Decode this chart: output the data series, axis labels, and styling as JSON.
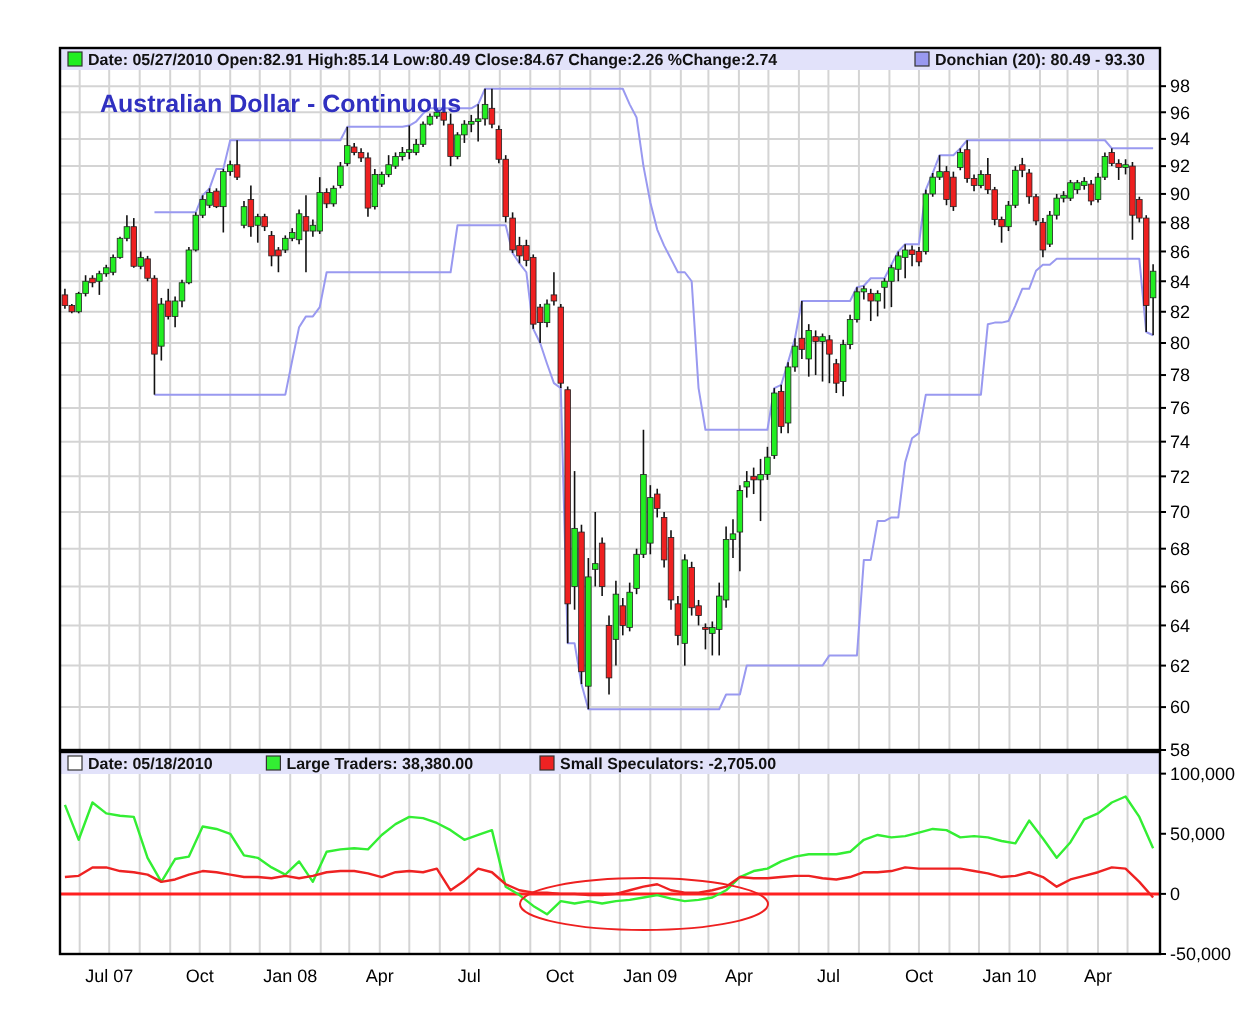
{
  "chart_data": [
    {
      "type": "candlestick",
      "title": "Australian Dollar - Continuous",
      "annotations": [
        "Date: 05/27/2010 Open:82.91 High:85.14 Low:80.49 Close:84.67 Change:2.26 %Change:2.74"
      ],
      "x": [
        "2007-05-17",
        "2007-05-24",
        "2007-05-31",
        "2007-06-07",
        "2007-06-14",
        "2007-06-21",
        "2007-06-28",
        "2007-07-05",
        "2007-07-12",
        "2007-07-19",
        "2007-07-26",
        "2007-08-02",
        "2007-08-09",
        "2007-08-16",
        "2007-08-23",
        "2007-08-30",
        "2007-09-06",
        "2007-09-13",
        "2007-09-20",
        "2007-09-27",
        "2007-10-04",
        "2007-10-11",
        "2007-10-18",
        "2007-10-25",
        "2007-11-01",
        "2007-11-08",
        "2007-11-15",
        "2007-11-22",
        "2007-11-29",
        "2007-12-06",
        "2007-12-13",
        "2007-12-20",
        "2007-12-27",
        "2008-01-03",
        "2008-01-10",
        "2008-01-17",
        "2008-01-24",
        "2008-01-31",
        "2008-02-07",
        "2008-02-14",
        "2008-02-21",
        "2008-02-28",
        "2008-03-06",
        "2008-03-13",
        "2008-03-20",
        "2008-03-27",
        "2008-04-03",
        "2008-04-10",
        "2008-04-17",
        "2008-04-24",
        "2008-05-01",
        "2008-05-08",
        "2008-05-15",
        "2008-05-22",
        "2008-05-29",
        "2008-06-05",
        "2008-06-12",
        "2008-06-19",
        "2008-06-26",
        "2008-07-03",
        "2008-07-10",
        "2008-07-17",
        "2008-07-24",
        "2008-07-31",
        "2008-08-07",
        "2008-08-14",
        "2008-08-21",
        "2008-08-28",
        "2008-09-04",
        "2008-09-11",
        "2008-09-18",
        "2008-09-25",
        "2008-10-02",
        "2008-10-09",
        "2008-10-16",
        "2008-10-23",
        "2008-10-30",
        "2008-11-06",
        "2008-11-13",
        "2008-11-20",
        "2008-11-27",
        "2008-12-04",
        "2008-12-11",
        "2008-12-18",
        "2008-12-25",
        "2009-01-01",
        "2009-01-08",
        "2009-01-15",
        "2009-01-22",
        "2009-01-29",
        "2009-02-05",
        "2009-02-12",
        "2009-02-19",
        "2009-02-26",
        "2009-03-05",
        "2009-03-12",
        "2009-03-19",
        "2009-03-26",
        "2009-04-02",
        "2009-04-09",
        "2009-04-16",
        "2009-04-23",
        "2009-04-30",
        "2009-05-07",
        "2009-05-14",
        "2009-05-21",
        "2009-05-28",
        "2009-06-04",
        "2009-06-11",
        "2009-06-18",
        "2009-06-25",
        "2009-07-02",
        "2009-07-09",
        "2009-07-16",
        "2009-07-23",
        "2009-07-30",
        "2009-08-06",
        "2009-08-13",
        "2009-08-20",
        "2009-08-27",
        "2009-09-03",
        "2009-09-10",
        "2009-09-17",
        "2009-09-24",
        "2009-10-01",
        "2009-10-08",
        "2009-10-15",
        "2009-10-22",
        "2009-10-29",
        "2009-11-05",
        "2009-11-12",
        "2009-11-19",
        "2009-11-26",
        "2009-12-03",
        "2009-12-10",
        "2009-12-17",
        "2009-12-24",
        "2009-12-31",
        "2010-01-07",
        "2010-01-14",
        "2010-01-21",
        "2010-01-28",
        "2010-02-04",
        "2010-02-11",
        "2010-02-18",
        "2010-02-25",
        "2010-03-04",
        "2010-03-11",
        "2010-03-18",
        "2010-03-25",
        "2010-04-01",
        "2010-04-08",
        "2010-04-15",
        "2010-04-22",
        "2010-04-29",
        "2010-05-06",
        "2010-05-13",
        "2010-05-20",
        "2010-05-27"
      ],
      "ohlc": [
        [
          83.1,
          83.5,
          82.2,
          82.4
        ],
        [
          82.4,
          82.5,
          81.9,
          82.0
        ],
        [
          82.0,
          83.3,
          81.9,
          83.2
        ],
        [
          83.2,
          84.4,
          83.0,
          84.0
        ],
        [
          84.2,
          84.4,
          83.6,
          83.9
        ],
        [
          84.0,
          84.7,
          83.1,
          84.5
        ],
        [
          84.5,
          85.1,
          84.3,
          84.9
        ],
        [
          84.6,
          85.8,
          84.4,
          85.6
        ],
        [
          85.6,
          87.0,
          85.5,
          86.9
        ],
        [
          86.9,
          88.5,
          86.7,
          87.7
        ],
        [
          87.7,
          88.3,
          84.9,
          85.0
        ],
        [
          85.0,
          86.0,
          84.8,
          85.6
        ],
        [
          85.5,
          85.7,
          84.0,
          84.2
        ],
        [
          84.2,
          84.4,
          76.8,
          79.3
        ],
        [
          79.8,
          82.9,
          78.9,
          82.5
        ],
        [
          82.7,
          83.5,
          81.5,
          81.7
        ],
        [
          81.7,
          83.0,
          81.0,
          82.7
        ],
        [
          82.7,
          84.1,
          82.3,
          83.9
        ],
        [
          83.9,
          86.3,
          83.8,
          86.1
        ],
        [
          86.1,
          88.7,
          86.0,
          88.5
        ],
        [
          88.5,
          89.9,
          88.3,
          89.6
        ],
        [
          89.2,
          90.4,
          89.0,
          90.1
        ],
        [
          90.2,
          90.4,
          89.0,
          89.1
        ],
        [
          89.1,
          91.8,
          87.3,
          91.6
        ],
        [
          91.6,
          92.4,
          91.3,
          92.1
        ],
        [
          92.1,
          93.9,
          91.0,
          91.2
        ],
        [
          87.8,
          89.5,
          87.6,
          89.1
        ],
        [
          89.6,
          90.6,
          87.0,
          87.7
        ],
        [
          87.8,
          88.6,
          86.6,
          88.4
        ],
        [
          88.4,
          88.6,
          87.4,
          87.7
        ],
        [
          87.1,
          87.4,
          85.0,
          85.7
        ],
        [
          86.1,
          86.3,
          84.6,
          85.7
        ],
        [
          86.1,
          87.1,
          85.9,
          86.9
        ],
        [
          86.9,
          87.6,
          86.7,
          87.3
        ],
        [
          86.8,
          88.9,
          86.5,
          88.6
        ],
        [
          88.4,
          89.9,
          84.6,
          87.4
        ],
        [
          87.4,
          88.2,
          87.0,
          87.8
        ],
        [
          87.4,
          91.2,
          87.2,
          90.1
        ],
        [
          90.1,
          90.4,
          89.0,
          89.3
        ],
        [
          89.3,
          90.6,
          89.1,
          90.4
        ],
        [
          90.6,
          92.3,
          90.4,
          92.0
        ],
        [
          92.2,
          94.9,
          92.0,
          93.5
        ],
        [
          93.4,
          93.7,
          92.8,
          93.0
        ],
        [
          93.0,
          93.3,
          92.3,
          92.6
        ],
        [
          92.6,
          93.0,
          88.4,
          89.0
        ],
        [
          89.1,
          91.8,
          88.9,
          91.4
        ],
        [
          90.7,
          91.6,
          90.5,
          91.4
        ],
        [
          91.4,
          92.8,
          91.2,
          92.1
        ],
        [
          92.0,
          93.0,
          91.8,
          92.7
        ],
        [
          92.7,
          93.4,
          92.4,
          93.0
        ],
        [
          93.0,
          95.0,
          92.5,
          93.2
        ],
        [
          93.0,
          94.0,
          92.8,
          93.6
        ],
        [
          93.6,
          95.3,
          93.4,
          95.1
        ],
        [
          95.1,
          95.9,
          95.0,
          95.7
        ],
        [
          95.7,
          96.3,
          95.5,
          96.0
        ],
        [
          96.0,
          96.2,
          95.0,
          95.4
        ],
        [
          95.1,
          95.9,
          92.0,
          92.7
        ],
        [
          92.7,
          94.5,
          92.5,
          94.3
        ],
        [
          94.3,
          95.4,
          93.7,
          95.1
        ],
        [
          95.1,
          95.8,
          94.5,
          95.3
        ],
        [
          95.3,
          96.6,
          93.8,
          95.5
        ],
        [
          95.5,
          97.8,
          95.0,
          96.6
        ],
        [
          96.3,
          97.8,
          94.8,
          95.1
        ],
        [
          94.7,
          95.0,
          92.2,
          92.5
        ],
        [
          92.5,
          92.8,
          88.0,
          88.4
        ],
        [
          88.3,
          88.7,
          85.9,
          86.1
        ],
        [
          86.4,
          87.0,
          85.2,
          85.7
        ],
        [
          86.4,
          86.8,
          85.0,
          85.4
        ],
        [
          85.6,
          85.8,
          80.9,
          81.2
        ],
        [
          82.3,
          82.5,
          80.0,
          81.3
        ],
        [
          81.3,
          82.8,
          81.0,
          82.5
        ],
        [
          83.1,
          84.6,
          82.4,
          82.7
        ],
        [
          82.3,
          82.5,
          77.2,
          77.5
        ],
        [
          77.1,
          77.3,
          63.1,
          65.1
        ],
        [
          66.0,
          72.3,
          64.8,
          69.1
        ],
        [
          68.9,
          69.3,
          61.1,
          61.7
        ],
        [
          61.0,
          67.5,
          59.9,
          66.5
        ],
        [
          66.9,
          70.0,
          66.0,
          67.2
        ],
        [
          68.3,
          68.6,
          65.5,
          66.0
        ],
        [
          64.0,
          64.5,
          60.6,
          61.4
        ],
        [
          63.3,
          66.3,
          62.0,
          65.6
        ],
        [
          65.0,
          65.4,
          63.5,
          64.0
        ],
        [
          63.9,
          66.2,
          63.7,
          65.7
        ],
        [
          65.9,
          68.0,
          65.6,
          67.7
        ],
        [
          67.7,
          74.7,
          67.5,
          72.1
        ],
        [
          68.3,
          71.5,
          67.7,
          70.8
        ],
        [
          71.0,
          71.3,
          69.7,
          70.2
        ],
        [
          69.7,
          70.0,
          67.0,
          67.4
        ],
        [
          68.6,
          69.0,
          64.8,
          65.3
        ],
        [
          65.1,
          65.5,
          63.0,
          63.5
        ],
        [
          63.1,
          67.7,
          62.0,
          67.4
        ],
        [
          67.0,
          67.3,
          64.5,
          64.9
        ],
        [
          65.0,
          65.3,
          64.0,
          64.5
        ],
        [
          63.9,
          64.1,
          62.8,
          63.8
        ],
        [
          63.6,
          64.2,
          62.5,
          63.9
        ],
        [
          63.8,
          66.2,
          62.5,
          65.5
        ],
        [
          65.3,
          69.2,
          64.9,
          68.5
        ],
        [
          68.5,
          69.6,
          67.5,
          68.8
        ],
        [
          68.9,
          71.5,
          66.8,
          71.2
        ],
        [
          71.4,
          72.3,
          70.8,
          71.7
        ],
        [
          72.0,
          72.5,
          71.0,
          71.8
        ],
        [
          71.8,
          73.0,
          69.5,
          72.1
        ],
        [
          72.1,
          73.7,
          71.8,
          73.1
        ],
        [
          73.2,
          77.2,
          73.0,
          76.9
        ],
        [
          77.0,
          77.4,
          74.5,
          74.9
        ],
        [
          75.1,
          78.8,
          74.5,
          78.5
        ],
        [
          78.5,
          80.3,
          78.2,
          79.8
        ],
        [
          80.3,
          82.7,
          79.0,
          79.6
        ],
        [
          79.0,
          81.2,
          77.9,
          80.8
        ],
        [
          80.4,
          80.8,
          78.0,
          80.1
        ],
        [
          80.1,
          80.6,
          77.6,
          80.4
        ],
        [
          80.2,
          80.5,
          77.5,
          79.3
        ],
        [
          78.7,
          79.0,
          76.9,
          77.5
        ],
        [
          77.6,
          80.2,
          76.7,
          79.9
        ],
        [
          79.9,
          81.8,
          79.6,
          81.5
        ],
        [
          81.5,
          83.6,
          81.3,
          83.3
        ],
        [
          83.3,
          83.7,
          82.8,
          83.5
        ],
        [
          83.2,
          83.5,
          81.4,
          82.7
        ],
        [
          82.7,
          83.4,
          81.7,
          83.2
        ],
        [
          83.6,
          84.2,
          82.2,
          84.0
        ],
        [
          84.0,
          85.1,
          82.3,
          84.9
        ],
        [
          84.8,
          86.0,
          84.0,
          85.7
        ],
        [
          85.6,
          86.5,
          84.2,
          86.1
        ],
        [
          86.1,
          86.4,
          85.0,
          85.8
        ],
        [
          86.0,
          86.3,
          85.0,
          85.3
        ],
        [
          86.0,
          90.3,
          85.8,
          90.0
        ],
        [
          90.0,
          91.5,
          89.8,
          91.2
        ],
        [
          91.2,
          92.8,
          91.0,
          91.6
        ],
        [
          91.6,
          92.0,
          89.2,
          89.6
        ],
        [
          91.2,
          91.6,
          88.8,
          89.1
        ],
        [
          91.9,
          93.3,
          91.7,
          93.0
        ],
        [
          93.2,
          93.9,
          90.8,
          91.1
        ],
        [
          91.1,
          91.4,
          90.2,
          90.6
        ],
        [
          90.6,
          91.7,
          90.4,
          91.4
        ],
        [
          91.4,
          92.6,
          90.0,
          90.3
        ],
        [
          90.3,
          90.5,
          87.8,
          88.2
        ],
        [
          88.2,
          88.4,
          86.6,
          87.7
        ],
        [
          87.7,
          89.5,
          87.4,
          89.2
        ],
        [
          89.2,
          92.0,
          89.0,
          91.7
        ],
        [
          92.1,
          92.6,
          91.2,
          91.7
        ],
        [
          91.5,
          91.8,
          89.3,
          89.8
        ],
        [
          89.8,
          90.0,
          87.8,
          88.1
        ],
        [
          88.0,
          88.3,
          85.6,
          86.1
        ],
        [
          86.5,
          88.8,
          86.3,
          88.5
        ],
        [
          88.5,
          90.0,
          88.2,
          89.7
        ],
        [
          89.7,
          90.2,
          89.4,
          89.9
        ],
        [
          89.7,
          91.0,
          89.5,
          90.8
        ],
        [
          90.3,
          91.0,
          90.0,
          90.8
        ],
        [
          90.6,
          91.2,
          90.3,
          90.9
        ],
        [
          90.7,
          91.0,
          89.2,
          89.5
        ],
        [
          89.6,
          91.5,
          89.4,
          91.2
        ],
        [
          91.2,
          93.0,
          91.0,
          92.7
        ],
        [
          93.0,
          93.3,
          92.0,
          92.2
        ],
        [
          92.2,
          92.5,
          91.0,
          91.9
        ],
        [
          91.9,
          92.5,
          91.4,
          92.1
        ],
        [
          92.0,
          92.3,
          86.8,
          88.5
        ],
        [
          89.6,
          89.8,
          88.0,
          88.3
        ],
        [
          88.3,
          88.5,
          80.7,
          82.4
        ],
        [
          82.91,
          85.14,
          80.49,
          84.67
        ]
      ],
      "series": [
        {
          "name": "Donchian (20): 80.49 - 93.30",
          "type": "line",
          "color": "#9999f0",
          "values": [
            null,
            null,
            null,
            null,
            null,
            null,
            null,
            null,
            null,
            null,
            null,
            null,
            null,
            88.7,
            88.7,
            88.7,
            88.7,
            88.7,
            88.7,
            88.7,
            89.9,
            90.4,
            91.8,
            91.8,
            93.9,
            93.9,
            93.9,
            93.9,
            93.9,
            93.9,
            93.9,
            93.9,
            93.9,
            93.9,
            93.9,
            93.9,
            93.9,
            93.9,
            93.9,
            93.9,
            93.9,
            94.9,
            94.9,
            94.9,
            94.9,
            94.9,
            94.9,
            94.9,
            94.9,
            94.9,
            95.0,
            95.3,
            95.9,
            96.3,
            96.3,
            96.3,
            96.3,
            96.3,
            96.3,
            96.3,
            96.6,
            97.8,
            97.8,
            97.8,
            97.8,
            97.8,
            97.8,
            97.8,
            97.8,
            97.8,
            97.8,
            97.8,
            97.8,
            97.8,
            97.8,
            97.8,
            97.8,
            97.8,
            97.8,
            97.8,
            97.8,
            97.8,
            96.6,
            95.6,
            92.0,
            89.4,
            87.5,
            86.4,
            85.5,
            84.6,
            84.6,
            84.0,
            77.2,
            74.7,
            74.7,
            74.7,
            74.7,
            74.7,
            74.7,
            74.7,
            74.7,
            74.7,
            74.7,
            77.2,
            77.4,
            78.8,
            80.3,
            82.7,
            82.7,
            82.7,
            82.7,
            82.7,
            82.7,
            82.7,
            82.7,
            83.6,
            83.7,
            84.2,
            84.2,
            84.2,
            85.1,
            86.0,
            86.5,
            86.5,
            86.5,
            90.3,
            91.5,
            92.8,
            92.8,
            92.8,
            93.3,
            93.9,
            93.9,
            93.9,
            93.9,
            93.9,
            93.9,
            93.9,
            93.9,
            93.9,
            93.9,
            93.9,
            93.9,
            93.9,
            93.9,
            93.9,
            93.9,
            93.9,
            93.9,
            93.9,
            93.9,
            93.9,
            93.3,
            93.3,
            93.3,
            93.3,
            93.3,
            93.3,
            93.3
          ]
        },
        {
          "type": "line",
          "color": "#9999f0",
          "values": [
            null,
            null,
            null,
            null,
            null,
            null,
            null,
            null,
            null,
            null,
            null,
            null,
            null,
            76.8,
            76.8,
            76.8,
            76.8,
            76.8,
            76.8,
            76.8,
            76.8,
            76.8,
            76.8,
            76.8,
            76.8,
            76.8,
            76.8,
            76.8,
            76.8,
            76.8,
            76.8,
            76.8,
            76.8,
            78.9,
            81.0,
            81.7,
            81.7,
            82.3,
            84.6,
            84.6,
            84.6,
            84.6,
            84.6,
            84.6,
            84.6,
            84.6,
            84.6,
            84.6,
            84.6,
            84.6,
            84.6,
            84.6,
            84.6,
            84.6,
            84.6,
            84.6,
            84.6,
            87.8,
            87.8,
            87.8,
            87.8,
            87.8,
            87.8,
            87.8,
            87.8,
            85.9,
            85.2,
            84.6,
            80.9,
            80.0,
            78.7,
            77.5,
            77.2,
            63.1,
            63.1,
            61.1,
            59.9,
            59.9,
            59.9,
            59.9,
            59.9,
            59.9,
            59.9,
            59.9,
            59.9,
            59.9,
            59.9,
            59.9,
            59.9,
            59.9,
            59.9,
            59.9,
            59.9,
            59.9,
            59.9,
            59.9,
            60.6,
            60.6,
            60.6,
            62.0,
            62.0,
            62.0,
            62.0,
            62.0,
            62.0,
            62.0,
            62.0,
            62.0,
            62.0,
            62.0,
            62.0,
            62.5,
            62.5,
            62.5,
            62.5,
            62.5,
            67.4,
            67.4,
            69.5,
            69.5,
            69.7,
            69.7,
            72.8,
            74.2,
            74.5,
            76.8,
            76.8,
            76.8,
            76.8,
            76.8,
            76.8,
            76.8,
            76.8,
            76.8,
            81.2,
            81.3,
            81.3,
            81.4,
            82.4,
            83.5,
            83.5,
            84.7,
            85.1,
            85.1,
            85.5,
            85.5,
            85.5,
            85.5,
            85.5,
            85.5,
            85.5,
            85.5,
            85.5,
            85.5,
            85.5,
            85.5,
            85.5,
            80.7,
            80.49
          ]
        }
      ],
      "xlim": [
        "2007-05-12",
        "2010-06-03"
      ],
      "xticks": [
        {
          "value": "2007-06-01",
          "label": null
        },
        {
          "value": "2007-07-01",
          "label": null
        },
        {
          "value": "2007-08-01",
          "label": null
        },
        {
          "value": "2007-09-01",
          "label": null
        },
        {
          "value": "2007-10-01",
          "label": null
        },
        {
          "value": "2007-11-01",
          "label": null
        },
        {
          "value": "2007-12-01",
          "label": null
        },
        {
          "value": "2008-01-01",
          "label": null
        },
        {
          "value": "2008-02-01",
          "label": null
        },
        {
          "value": "2008-03-01",
          "label": null
        },
        {
          "value": "2008-04-01",
          "label": null
        },
        {
          "value": "2008-05-01",
          "label": null
        },
        {
          "value": "2008-06-01",
          "label": null
        },
        {
          "value": "2008-07-01",
          "label": null
        },
        {
          "value": "2008-08-01",
          "label": null
        },
        {
          "value": "2008-09-01",
          "label": null
        },
        {
          "value": "2008-10-01",
          "label": null
        },
        {
          "value": "2008-11-01",
          "label": null
        },
        {
          "value": "2008-12-01",
          "label": null
        },
        {
          "value": "2009-01-01",
          "label": null
        },
        {
          "value": "2009-02-01",
          "label": null
        },
        {
          "value": "2009-03-01",
          "label": null
        },
        {
          "value": "2009-04-01",
          "label": null
        },
        {
          "value": "2009-05-01",
          "label": null
        },
        {
          "value": "2009-06-01",
          "label": null
        },
        {
          "value": "2009-07-01",
          "label": null
        },
        {
          "value": "2009-08-01",
          "label": null
        },
        {
          "value": "2009-09-01",
          "label": null
        },
        {
          "value": "2009-10-01",
          "label": null
        },
        {
          "value": "2009-11-01",
          "label": null
        },
        {
          "value": "2009-12-01",
          "label": null
        },
        {
          "value": "2010-01-01",
          "label": null
        },
        {
          "value": "2010-02-01",
          "label": null
        },
        {
          "value": "2010-03-01",
          "label": null
        },
        {
          "value": "2010-04-01",
          "label": null
        },
        {
          "value": "2010-05-01",
          "label": null
        }
      ],
      "ylim": [
        58,
        101
      ],
      "yticks": [
        58,
        60,
        62,
        64,
        66,
        68,
        70,
        72,
        74,
        76,
        78,
        80,
        82,
        84,
        86,
        88,
        90,
        92,
        94,
        96,
        98
      ],
      "log": true,
      "grid": true,
      "legend": "top",
      "tick_labels": "y"
    },
    {
      "type": "line",
      "annotations": [
        "Date: 05/18/2010"
      ],
      "x": [
        "2007-05-17",
        "2007-05-31",
        "2007-06-14",
        "2007-06-28",
        "2007-07-12",
        "2007-07-26",
        "2007-08-09",
        "2007-08-23",
        "2007-09-06",
        "2007-09-20",
        "2007-10-04",
        "2007-10-18",
        "2007-11-01",
        "2007-11-15",
        "2007-11-29",
        "2007-12-13",
        "2007-12-27",
        "2008-01-10",
        "2008-01-24",
        "2008-02-07",
        "2008-02-21",
        "2008-03-06",
        "2008-03-20",
        "2008-04-03",
        "2008-04-17",
        "2008-05-01",
        "2008-05-15",
        "2008-05-29",
        "2008-06-12",
        "2008-06-26",
        "2008-07-10",
        "2008-07-24",
        "2008-08-07",
        "2008-08-21",
        "2008-09-04",
        "2008-09-18",
        "2008-10-02",
        "2008-10-16",
        "2008-10-30",
        "2008-11-13",
        "2008-11-27",
        "2008-12-11",
        "2008-12-25",
        "2009-01-08",
        "2009-01-22",
        "2009-02-05",
        "2009-02-19",
        "2009-03-05",
        "2009-03-19",
        "2009-04-02",
        "2009-04-16",
        "2009-04-30",
        "2009-05-14",
        "2009-05-28",
        "2009-06-11",
        "2009-06-25",
        "2009-07-09",
        "2009-07-23",
        "2009-08-06",
        "2009-08-20",
        "2009-09-03",
        "2009-09-17",
        "2009-10-01",
        "2009-10-15",
        "2009-10-29",
        "2009-11-12",
        "2009-11-26",
        "2009-12-10",
        "2009-12-24",
        "2010-01-07",
        "2010-01-21",
        "2010-02-04",
        "2010-02-18",
        "2010-03-04",
        "2010-03-18",
        "2010-04-01",
        "2010-04-15",
        "2010-04-29",
        "2010-05-13",
        "2010-05-27"
      ],
      "series": [
        {
          "name": "Large Traders: 38,380.00",
          "color": "#33ee33",
          "values": [
            74000,
            45000,
            76000,
            67000,
            65000,
            64000,
            30000,
            10000,
            29000,
            31000,
            56000,
            54000,
            50000,
            32000,
            30000,
            22000,
            16000,
            27000,
            10000,
            35000,
            37000,
            38000,
            37000,
            49000,
            58000,
            64000,
            63000,
            59000,
            53000,
            45000,
            49000,
            53000,
            6000,
            -1000,
            -10000,
            -17000,
            -6000,
            -8000,
            -6000,
            -8000,
            -6000,
            -5000,
            -3000,
            -1000,
            -4000,
            -6000,
            -5000,
            -3000,
            3000,
            14000,
            19000,
            21000,
            27000,
            31000,
            33000,
            33000,
            33000,
            35000,
            45000,
            49000,
            47000,
            48000,
            51000,
            54000,
            53000,
            47000,
            48000,
            47000,
            44000,
            42000,
            61000,
            46000,
            30000,
            43000,
            62000,
            67000,
            76000,
            81000,
            64000,
            38000
          ]
        },
        {
          "name": "Small Speculators: -2,705.00",
          "color": "#ee2222",
          "values": [
            14000,
            15000,
            22000,
            22000,
            19000,
            18000,
            16000,
            10000,
            12000,
            16000,
            19000,
            18000,
            16000,
            14000,
            14000,
            13000,
            15000,
            13000,
            15000,
            18000,
            19000,
            19000,
            17000,
            14000,
            18000,
            19000,
            18000,
            21000,
            3000,
            11000,
            21000,
            18000,
            8000,
            3000,
            1000,
            1000,
            0,
            0,
            -1000,
            -1000,
            0,
            3000,
            6000,
            8000,
            3000,
            1000,
            1000,
            3000,
            6000,
            14000,
            13000,
            13000,
            14000,
            15000,
            15000,
            13000,
            12000,
            14000,
            18000,
            18000,
            19000,
            22000,
            21000,
            21000,
            21000,
            21000,
            19000,
            17000,
            14000,
            15000,
            18000,
            14000,
            6000,
            12000,
            15000,
            18000,
            22000,
            21000,
            10000,
            -3000
          ]
        }
      ],
      "ref_lines": [
        {
          "axis": "y",
          "value": 0,
          "color": "#ff2020"
        }
      ],
      "xlim": [
        "2007-05-12",
        "2010-06-03"
      ],
      "xticks": [
        {
          "value": "2007-06-01",
          "label": null
        },
        {
          "value": "2007-07-01",
          "label": "Jul 07"
        },
        {
          "value": "2007-08-01",
          "label": null
        },
        {
          "value": "2007-09-01",
          "label": null
        },
        {
          "value": "2007-10-01",
          "label": "Oct"
        },
        {
          "value": "2007-11-01",
          "label": null
        },
        {
          "value": "2007-12-01",
          "label": null
        },
        {
          "value": "2008-01-01",
          "label": "Jan 08"
        },
        {
          "value": "2008-02-01",
          "label": null
        },
        {
          "value": "2008-03-01",
          "label": null
        },
        {
          "value": "2008-04-01",
          "label": "Apr"
        },
        {
          "value": "2008-05-01",
          "label": null
        },
        {
          "value": "2008-06-01",
          "label": null
        },
        {
          "value": "2008-07-01",
          "label": "Jul"
        },
        {
          "value": "2008-08-01",
          "label": null
        },
        {
          "value": "2008-09-01",
          "label": null
        },
        {
          "value": "2008-10-01",
          "label": "Oct"
        },
        {
          "value": "2008-11-01",
          "label": null
        },
        {
          "value": "2008-12-01",
          "label": null
        },
        {
          "value": "2009-01-01",
          "label": "Jan 09"
        },
        {
          "value": "2009-02-01",
          "label": null
        },
        {
          "value": "2009-03-01",
          "label": null
        },
        {
          "value": "2009-04-01",
          "label": "Apr"
        },
        {
          "value": "2009-05-01",
          "label": null
        },
        {
          "value": "2009-06-01",
          "label": null
        },
        {
          "value": "2009-07-01",
          "label": "Jul"
        },
        {
          "value": "2009-08-01",
          "label": null
        },
        {
          "value": "2009-09-01",
          "label": null
        },
        {
          "value": "2009-10-01",
          "label": "Oct"
        },
        {
          "value": "2009-11-01",
          "label": null
        },
        {
          "value": "2009-12-01",
          "label": null
        },
        {
          "value": "2010-01-01",
          "label": "Jan 10"
        },
        {
          "value": "2010-02-01",
          "label": null
        },
        {
          "value": "2010-03-01",
          "label": null
        },
        {
          "value": "2010-04-01",
          "label": "Apr"
        },
        {
          "value": "2010-05-01",
          "label": null
        }
      ],
      "ylim": [
        -50000,
        118000
      ],
      "yticks": [
        {
          "value": -50000,
          "label": "-50,000"
        },
        0,
        {
          "value": 50000,
          "label": "50,000"
        },
        {
          "value": 100000,
          "label": "100,000"
        }
      ],
      "grid": "x",
      "legend": "top"
    }
  ]
}
